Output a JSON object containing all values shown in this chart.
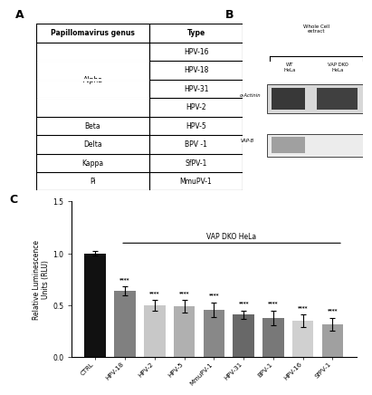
{
  "bar_categories": [
    "CTRL",
    "HPV-18",
    "HPV-2",
    "HPV-5",
    "MmuPV-1",
    "HPV-31",
    "BPV-1",
    "HPV-16",
    "SfPV-1"
  ],
  "bar_values": [
    1.0,
    0.64,
    0.5,
    0.49,
    0.46,
    0.41,
    0.38,
    0.35,
    0.32
  ],
  "bar_errors": [
    0.02,
    0.04,
    0.05,
    0.06,
    0.07,
    0.04,
    0.07,
    0.06,
    0.06
  ],
  "bar_colors": [
    "#111111",
    "#808080",
    "#c8c8c8",
    "#b0b0b0",
    "#888888",
    "#686868",
    "#787878",
    "#d0d0d0",
    "#a0a0a0"
  ],
  "ylabel": "Relative Luminescence\nUnits (RLU)",
  "ylim": [
    0,
    1.5
  ],
  "yticks": [
    0.0,
    0.5,
    1.0,
    1.5
  ],
  "significance_label": "****",
  "annotation_label": "VAP DKO HeLa",
  "panel_a_label": "A",
  "panel_b_label": "B",
  "panel_c_label": "C",
  "table_header_genus": "Papillomavirus genus",
  "table_header_type": "Type",
  "wb_label1": "α-Actinin",
  "wb_label2": "VAP-B",
  "wb_header": "Whole Cell\nextract",
  "wb_col1": "WT\nHeLa",
  "wb_col2": "VAP DKO\nHeLa"
}
